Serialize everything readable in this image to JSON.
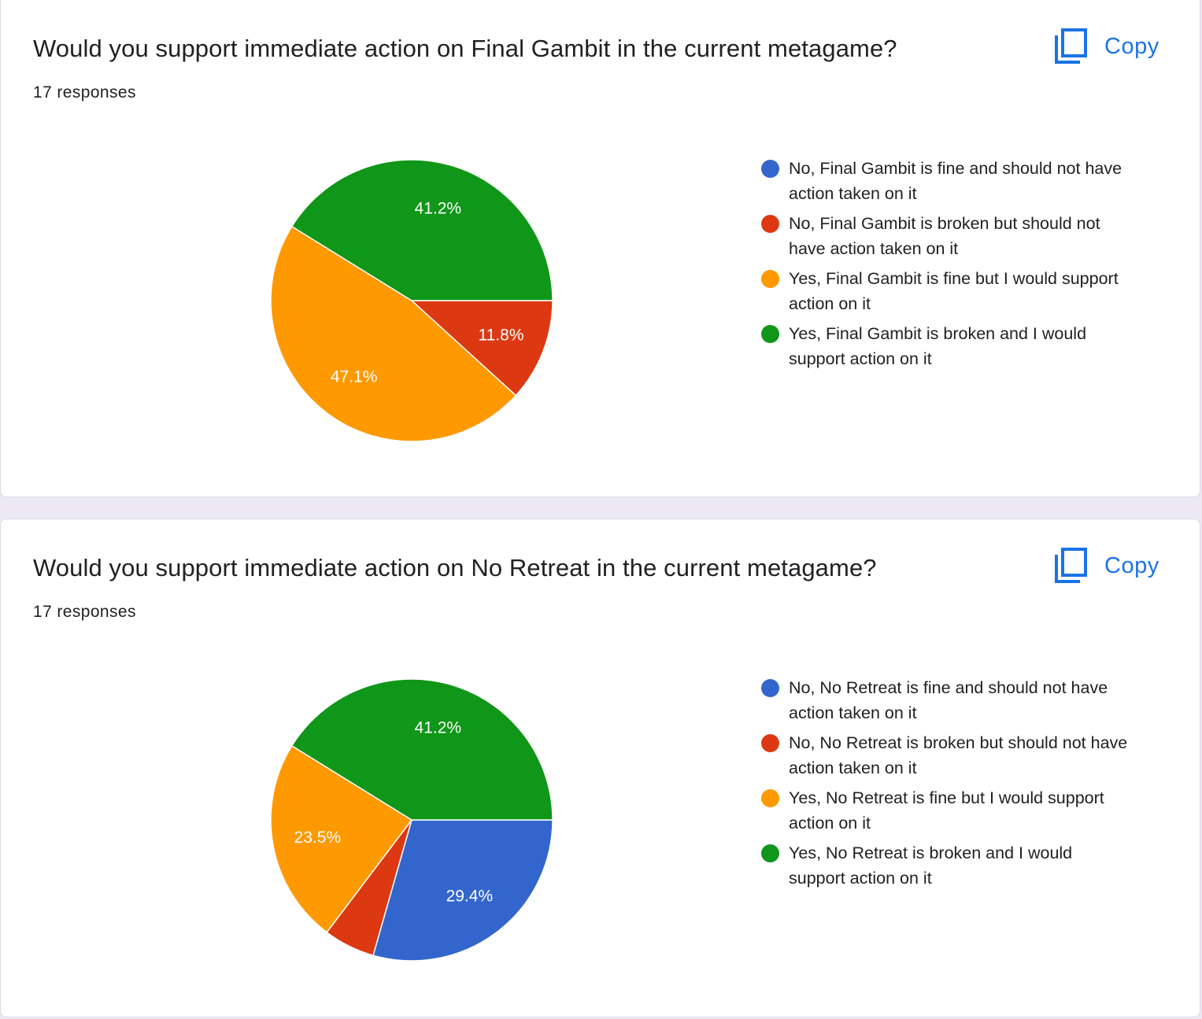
{
  "copy_label": "Copy",
  "colors": [
    "#3366cc",
    "#dc3912",
    "#ff9900",
    "#109618"
  ],
  "charts": [
    {
      "title": "Would you support immediate action on Final Gambit in the current metagame?",
      "responses": "17 responses",
      "legend": [
        "No, Final Gambit is fine and should not have action taken on it",
        "No, Final Gambit is broken but should not have action taken on it",
        "Yes, Final Gambit is fine but I would support action on it",
        "Yes, Final Gambit is broken and I would support action on it"
      ]
    },
    {
      "title": "Would you support immediate action on No Retreat in the current metagame?",
      "responses": "17 responses",
      "legend": [
        "No, No Retreat is fine and should not have action taken on it",
        "No, No Retreat is broken but should not have action taken on it",
        "Yes, No Retreat is fine but I would support action on it",
        "Yes, No Retreat is broken and I would support action on it"
      ]
    }
  ],
  "chart_data": [
    {
      "type": "pie",
      "title": "Would you support immediate action on Final Gambit in the current metagame?",
      "total": 17,
      "categories": [
        "No, Final Gambit is fine and should not have action taken on it",
        "No, Final Gambit is broken but should not have action taken on it",
        "Yes, Final Gambit is fine but I would support action on it",
        "Yes, Final Gambit is broken and I would support action on it"
      ],
      "values": [
        0,
        2,
        8,
        7
      ],
      "labels": [
        "",
        "11.8%",
        "47.1%",
        "41.2%"
      ],
      "legend_position": "right"
    },
    {
      "type": "pie",
      "title": "Would you support immediate action on No Retreat in the current metagame?",
      "total": 17,
      "categories": [
        "No, No Retreat is fine and should not have action taken on it",
        "No, No Retreat is broken but should not have action taken on it",
        "Yes, No Retreat is fine but I would support action on it",
        "Yes, No Retreat is broken and I would support action on it"
      ],
      "values": [
        5,
        1,
        4,
        7
      ],
      "labels": [
        "29.4%",
        "",
        "23.5%",
        "41.2%"
      ],
      "legend_position": "right"
    }
  ]
}
